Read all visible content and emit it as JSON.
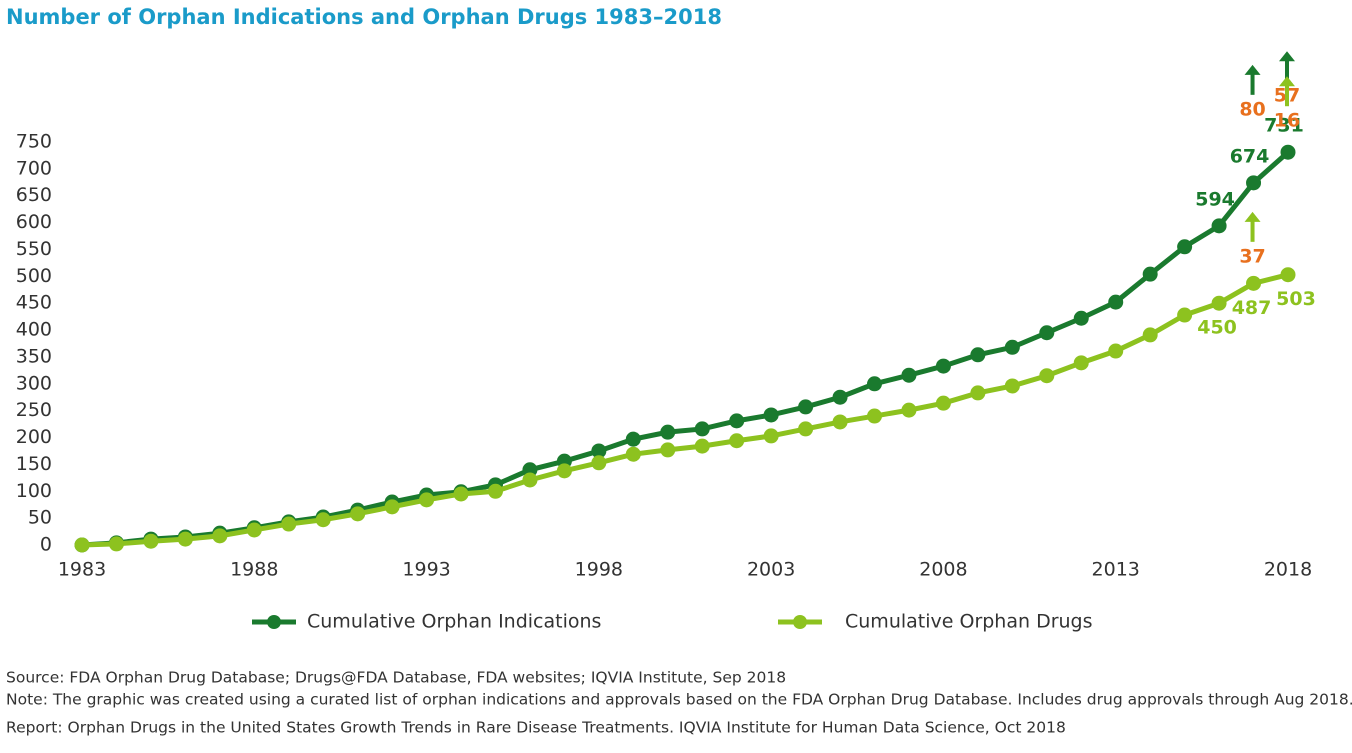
{
  "chart_data": {
    "type": "line",
    "title": "Number of Orphan Indications and Orphan Drugs 1983–2018",
    "x": [
      1983,
      1984,
      1985,
      1986,
      1987,
      1988,
      1989,
      1990,
      1991,
      1992,
      1993,
      1994,
      1995,
      1996,
      1997,
      1998,
      1999,
      2000,
      2001,
      2002,
      2003,
      2004,
      2005,
      2006,
      2007,
      2008,
      2009,
      2010,
      2011,
      2012,
      2013,
      2014,
      2015,
      2016,
      2017,
      2018
    ],
    "series": [
      {
        "name": "Cumulative Orphan Indications",
        "color": "#1a7a2e",
        "values": [
          0,
          4,
          11,
          15,
          22,
          32,
          43,
          52,
          65,
          80,
          93,
          99,
          112,
          140,
          156,
          175,
          197,
          210,
          216,
          231,
          242,
          257,
          275,
          300,
          316,
          333,
          354,
          368,
          395,
          422,
          452,
          504,
          555,
          594,
          674,
          731
        ],
        "annotations": [
          {
            "x": 2017,
            "value": 80
          },
          {
            "x": 2018,
            "value": 57
          }
        ]
      },
      {
        "name": "Cumulative Orphan Drugs",
        "color": "#8dc21f",
        "values": [
          0,
          2,
          7,
          11,
          17,
          28,
          39,
          47,
          58,
          71,
          84,
          95,
          100,
          121,
          138,
          153,
          169,
          177,
          184,
          194,
          203,
          216,
          229,
          240,
          251,
          264,
          283,
          296,
          315,
          339,
          361,
          391,
          428,
          450,
          487,
          503
        ],
        "annotations": [
          {
            "x": 2017,
            "value": 37
          },
          {
            "x": 2018,
            "value": 16
          }
        ]
      }
    ],
    "annotation_color": "#e8701e",
    "xlim": [
      1983,
      2018
    ],
    "xticks": [
      1983,
      1988,
      1993,
      1998,
      2003,
      2008,
      2013,
      2018
    ],
    "ylim": [
      0,
      750
    ],
    "yticks": [
      0,
      50,
      100,
      150,
      200,
      250,
      300,
      350,
      400,
      450,
      500,
      550,
      600,
      650,
      700,
      750
    ],
    "grid": false
  },
  "footnotes": [
    "Source: FDA Orphan Drug Database; Drugs@FDA Database, FDA websites; IQVIA Institute, Sep 2018",
    "Note: The graphic was created using a curated list of orphan indications and approvals based on the FDA Orphan Drug Database. Includes drug approvals through Aug 2018.",
    "Report: Orphan Drugs in the United States Growth Trends in Rare Disease Treatments. IQVIA Institute for Human Data Science, Oct 2018"
  ]
}
